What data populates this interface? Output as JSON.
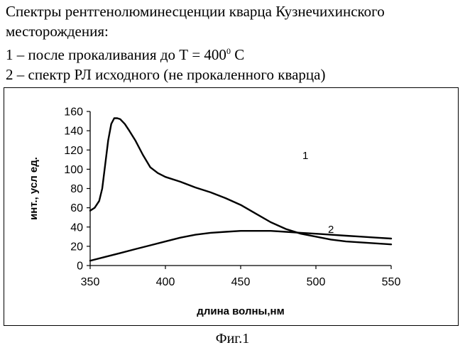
{
  "header": {
    "line1": "Спектры рентгенолюминесценции кварца Кузнечихинского",
    "line2": "месторождения:",
    "line3_pre": "1 – после прокаливания до Т = 400",
    "line3_sup": "0",
    "line3_post": " С",
    "line4": "2 – спектр РЛ исходного (не прокаленного кварца)"
  },
  "footer": {
    "caption": "Фиг.1"
  },
  "chart_data": {
    "type": "line",
    "xlabel": "длина волны,нм",
    "ylabel": "инт., усл ед.",
    "xlim": [
      350,
      550
    ],
    "ylim": [
      0,
      160
    ],
    "x_ticks": [
      350,
      400,
      450,
      500,
      550
    ],
    "y_ticks": [
      0,
      20,
      40,
      60,
      80,
      100,
      120,
      140,
      160
    ],
    "grid": false,
    "series": [
      {
        "name": "1",
        "x": [
          350,
          353,
          356,
          358,
          360,
          362,
          364,
          366,
          368,
          370,
          373,
          376,
          380,
          385,
          390,
          395,
          400,
          410,
          420,
          430,
          440,
          450,
          460,
          470,
          480,
          490,
          500,
          510,
          520,
          530,
          540,
          550
        ],
        "y": [
          57,
          60,
          67,
          80,
          105,
          130,
          147,
          153,
          153,
          152,
          147,
          140,
          130,
          115,
          102,
          96,
          92,
          87,
          81,
          76,
          70,
          63,
          54,
          45,
          38,
          33,
          30,
          27,
          25,
          24,
          23,
          22
        ]
      },
      {
        "name": "2",
        "x": [
          350,
          360,
          370,
          380,
          390,
          400,
          410,
          420,
          430,
          440,
          450,
          460,
          470,
          480,
          490,
          500,
          510,
          520,
          530,
          540,
          550
        ],
        "y": [
          5,
          9,
          13,
          17,
          21,
          25,
          29,
          32,
          34,
          35,
          36,
          36,
          36,
          35,
          34,
          33,
          32,
          31,
          30,
          29,
          28
        ]
      }
    ]
  }
}
